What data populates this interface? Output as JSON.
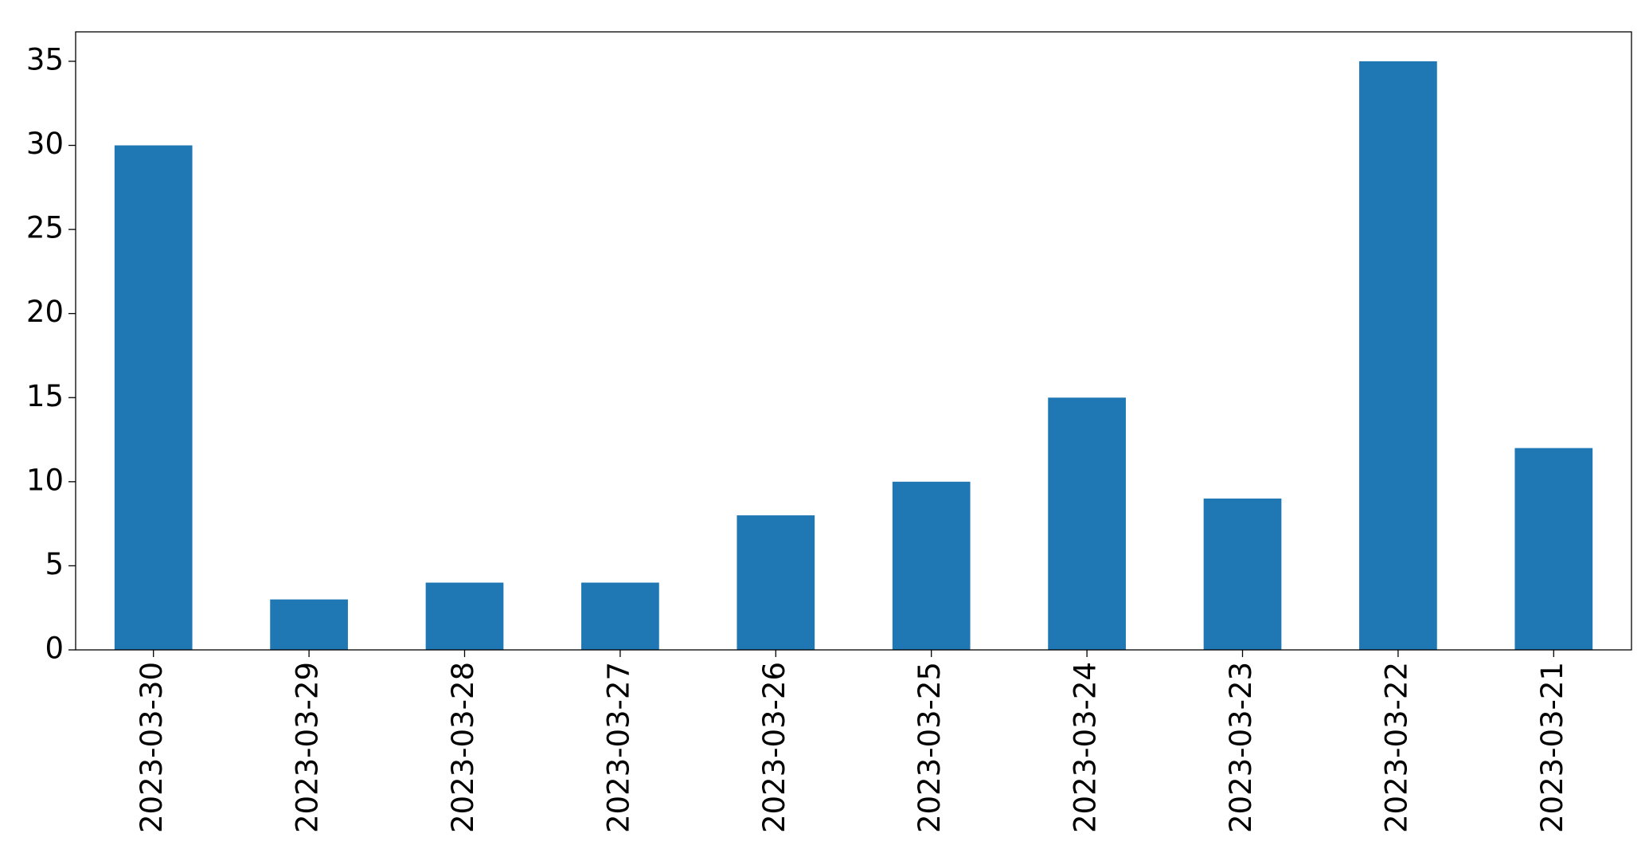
{
  "chart_data": {
    "type": "bar",
    "categories": [
      "2023-03-30",
      "2023-03-29",
      "2023-03-28",
      "2023-03-27",
      "2023-03-26",
      "2023-03-25",
      "2023-03-24",
      "2023-03-23",
      "2023-03-22",
      "2023-03-21"
    ],
    "values": [
      30,
      3,
      4,
      4,
      8,
      10,
      15,
      9,
      35,
      12
    ],
    "color": "#1f77b4",
    "ylim": [
      0,
      36.75
    ],
    "yticks": [
      0,
      5,
      10,
      15,
      20,
      25,
      30,
      35
    ],
    "grid": false
  }
}
